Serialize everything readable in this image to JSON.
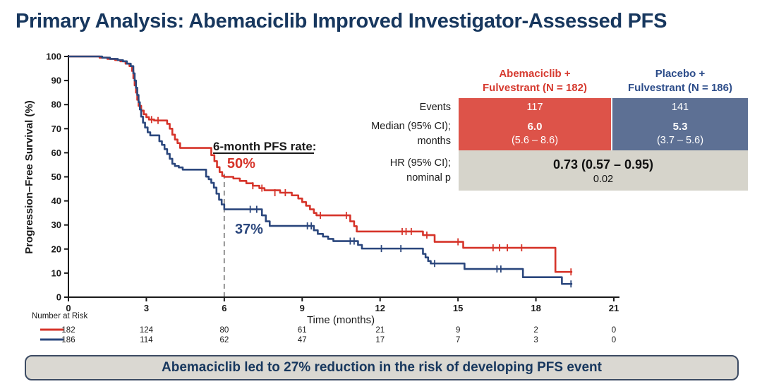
{
  "page": {
    "title": "Primary Analysis: Abemaciclib Improved Investigator-Assessed PFS",
    "banner": "Abemaciclib led to 27% reduction in the risk of developing PFS event"
  },
  "results_table": {
    "col_headers": [
      {
        "line1": "Abemaciclib +",
        "line2": "Fulvestrant (N = 182)"
      },
      {
        "line1": "Placebo +",
        "line2": "Fulvestrant (N = 186)"
      }
    ],
    "row_labels": [
      "Events",
      "Median (95% CI);",
      "months",
      "HR (95% CI);",
      "nominal p"
    ],
    "abemaciclib": {
      "events": "117",
      "median": "6.0",
      "ci": "(5.6 – 8.6)"
    },
    "placebo": {
      "events": "141",
      "median": "5.3",
      "ci": "(3.7 – 5.6)"
    },
    "hr": "0.73 (0.57 – 0.95)",
    "p": "0.02"
  },
  "chart_data": {
    "type": "line",
    "subtype": "kaplan_meier_step",
    "xlabel": "Time (months)",
    "ylabel": "Progression–Free Survival (%)",
    "xlim": [
      0,
      21
    ],
    "ylim": [
      0,
      100
    ],
    "xticks": [
      0,
      3,
      6,
      9,
      12,
      15,
      18,
      21
    ],
    "yticks": [
      0,
      10,
      20,
      30,
      40,
      50,
      60,
      70,
      80,
      90,
      100
    ],
    "grid": false,
    "annotations": {
      "dash_month": 6,
      "rate_label": {
        "text": "6-month PFS rate",
        "suffix": ":",
        "t": 5.57,
        "v": 61
      },
      "rate_red": {
        "text": "50%",
        "t": 6.11,
        "v": 53.7
      },
      "rate_blue": {
        "text": "37%",
        "t": 6.41,
        "v": 26.4
      },
      "dash_color": "#949494"
    },
    "series": [
      {
        "name": "Abemaciclib + Fulvestrant",
        "color": "#d6342a",
        "six_month_rate": 50,
        "steps": [
          [
            0,
            100
          ],
          [
            1.2,
            99.5
          ],
          [
            1.5,
            99
          ],
          [
            1.8,
            98.5
          ],
          [
            2.0,
            98
          ],
          [
            2.2,
            97
          ],
          [
            2.35,
            96
          ],
          [
            2.45,
            94
          ],
          [
            2.5,
            91
          ],
          [
            2.55,
            88
          ],
          [
            2.6,
            85
          ],
          [
            2.65,
            82
          ],
          [
            2.7,
            79.5
          ],
          [
            2.8,
            77.5
          ],
          [
            2.9,
            76
          ],
          [
            3.0,
            74.8
          ],
          [
            3.1,
            73.8
          ],
          [
            3.3,
            73.4
          ],
          [
            3.8,
            72
          ],
          [
            3.9,
            70
          ],
          [
            4.0,
            67.5
          ],
          [
            4.1,
            65.5
          ],
          [
            4.2,
            64
          ],
          [
            4.3,
            62
          ],
          [
            5.5,
            59
          ],
          [
            5.62,
            56.5
          ],
          [
            5.72,
            54
          ],
          [
            5.82,
            52
          ],
          [
            5.92,
            50.3
          ],
          [
            6.0,
            50
          ],
          [
            6.35,
            49.3
          ],
          [
            6.6,
            48.3
          ],
          [
            6.85,
            47.3
          ],
          [
            7.1,
            46.3
          ],
          [
            7.35,
            45.3
          ],
          [
            7.55,
            44.4
          ],
          [
            8.15,
            43.4
          ],
          [
            8.6,
            42.3
          ],
          [
            8.85,
            41
          ],
          [
            9.0,
            39.5
          ],
          [
            9.15,
            38
          ],
          [
            9.3,
            36.5
          ],
          [
            9.45,
            35
          ],
          [
            9.55,
            34
          ],
          [
            10.85,
            31.5
          ],
          [
            11.0,
            29.5
          ],
          [
            11.1,
            27.3
          ],
          [
            13.65,
            25.8
          ],
          [
            14.1,
            23
          ],
          [
            15.2,
            20.5
          ],
          [
            18.75,
            10.5
          ],
          [
            19.4,
            10.5
          ]
        ],
        "censors": [
          [
            2.75,
            79.5
          ],
          [
            3.2,
            73.8
          ],
          [
            3.45,
            73.4
          ],
          [
            7.1,
            46.3
          ],
          [
            7.45,
            45.3
          ],
          [
            7.95,
            43.4
          ],
          [
            8.35,
            43.4
          ],
          [
            9.7,
            34
          ],
          [
            10.7,
            34
          ],
          [
            12.85,
            27.3
          ],
          [
            13.0,
            27.3
          ],
          [
            13.2,
            27.3
          ],
          [
            13.8,
            25.8
          ],
          [
            15.0,
            23
          ],
          [
            16.35,
            20.5
          ],
          [
            16.6,
            20.5
          ],
          [
            16.9,
            20.5
          ],
          [
            17.45,
            20.5
          ],
          [
            19.35,
            10.5
          ]
        ]
      },
      {
        "name": "Placebo + Fulvestrant",
        "color": "#2b477d",
        "six_month_rate": 37,
        "steps": [
          [
            0,
            100
          ],
          [
            1.3,
            99.5
          ],
          [
            1.6,
            99
          ],
          [
            1.9,
            98.5
          ],
          [
            2.1,
            98
          ],
          [
            2.25,
            97
          ],
          [
            2.4,
            96
          ],
          [
            2.5,
            93
          ],
          [
            2.55,
            90
          ],
          [
            2.6,
            87
          ],
          [
            2.65,
            84
          ],
          [
            2.7,
            81
          ],
          [
            2.75,
            78
          ],
          [
            2.8,
            75
          ],
          [
            2.87,
            72.5
          ],
          [
            2.95,
            70.5
          ],
          [
            3.05,
            68.5
          ],
          [
            3.15,
            67.2
          ],
          [
            3.5,
            64.8
          ],
          [
            3.6,
            63.3
          ],
          [
            3.7,
            61.5
          ],
          [
            3.8,
            59.5
          ],
          [
            3.9,
            57.5
          ],
          [
            4.0,
            55.4
          ],
          [
            4.1,
            54.5
          ],
          [
            4.25,
            53.9
          ],
          [
            4.4,
            53
          ],
          [
            5.3,
            50.1
          ],
          [
            5.4,
            49
          ],
          [
            5.5,
            47.5
          ],
          [
            5.6,
            45.5
          ],
          [
            5.7,
            43
          ],
          [
            5.8,
            40.5
          ],
          [
            5.9,
            38.5
          ],
          [
            6.0,
            36.5
          ],
          [
            7.45,
            34
          ],
          [
            7.6,
            31.5
          ],
          [
            7.75,
            29.6
          ],
          [
            9.45,
            27.8
          ],
          [
            9.6,
            26.3
          ],
          [
            9.8,
            25.2
          ],
          [
            10.0,
            24.2
          ],
          [
            10.2,
            23.3
          ],
          [
            11.15,
            21.7
          ],
          [
            11.3,
            20.2
          ],
          [
            13.65,
            18
          ],
          [
            13.75,
            16.5
          ],
          [
            13.85,
            15
          ],
          [
            13.95,
            14
          ],
          [
            15.25,
            11.7
          ],
          [
            17.5,
            8.3
          ],
          [
            19.0,
            5.5
          ],
          [
            19.4,
            5.5
          ]
        ],
        "censors": [
          [
            7.0,
            36.5
          ],
          [
            7.25,
            36.5
          ],
          [
            9.2,
            29.6
          ],
          [
            9.35,
            29.6
          ],
          [
            10.85,
            23.3
          ],
          [
            11.0,
            23.3
          ],
          [
            12.05,
            20.2
          ],
          [
            12.8,
            20.2
          ],
          [
            14.1,
            14
          ],
          [
            16.5,
            11.7
          ],
          [
            16.65,
            11.7
          ],
          [
            19.35,
            5.5
          ]
        ]
      }
    ],
    "risk_table": {
      "label": "Number at Risk",
      "times": [
        0,
        3,
        6,
        9,
        12,
        15,
        18,
        21
      ],
      "rows": [
        {
          "name": "Abemaciclib + Fulvestrant",
          "color": "#d6342a",
          "values": [
            182,
            124,
            80,
            61,
            21,
            9,
            2,
            0
          ]
        },
        {
          "name": "Placebo + Fulvestrant",
          "color": "#2b477d",
          "values": [
            186,
            114,
            62,
            47,
            17,
            7,
            3,
            0
          ]
        }
      ]
    }
  }
}
